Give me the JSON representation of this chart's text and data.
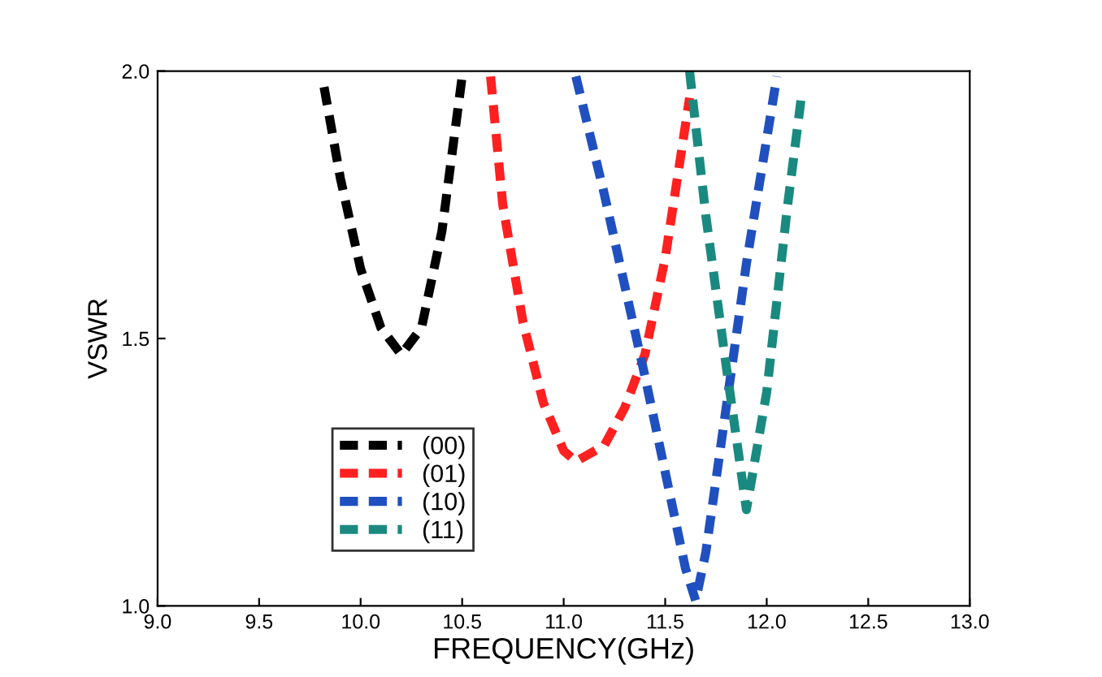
{
  "chart_data": {
    "type": "line",
    "xlabel": "FREQUENCY(GHz)",
    "ylabel": "VSWR",
    "xlim": [
      9.0,
      13.0
    ],
    "ylim": [
      1.0,
      2.0
    ],
    "xticks": [
      {
        "value": 9.0,
        "label": "9.0"
      },
      {
        "value": 9.5,
        "label": "9.5"
      },
      {
        "value": 10.0,
        "label": "10.0"
      },
      {
        "value": 10.5,
        "label": "10.5"
      },
      {
        "value": 11.0,
        "label": "11.0"
      },
      {
        "value": 11.5,
        "label": "11.5"
      },
      {
        "value": 12.0,
        "label": "12.0"
      },
      {
        "value": 12.5,
        "label": "12.5"
      },
      {
        "value": 13.0,
        "label": "13.0"
      }
    ],
    "yticks": [
      {
        "value": 1.0,
        "label": "1.0"
      },
      {
        "value": 1.5,
        "label": "1.5"
      },
      {
        "value": 2.0,
        "label": "2.0"
      }
    ],
    "line_style": "dashed",
    "marker": "none",
    "grid": false,
    "legend": "bottom left",
    "series": [
      {
        "name": "(00)",
        "color": "#000000",
        "x": [
          9.82,
          9.9,
          10.0,
          10.1,
          10.2,
          10.3,
          10.4,
          10.5
        ],
        "values": [
          1.97,
          1.8,
          1.63,
          1.52,
          1.47,
          1.52,
          1.7,
          1.99
        ]
      },
      {
        "name": "(01)",
        "color": "#ff2020",
        "x": [
          10.64,
          10.7,
          10.8,
          10.9,
          11.0,
          11.06,
          11.2,
          11.3,
          11.4,
          11.5,
          11.62
        ],
        "values": [
          1.99,
          1.75,
          1.53,
          1.38,
          1.29,
          1.27,
          1.3,
          1.37,
          1.47,
          1.65,
          1.95
        ]
      },
      {
        "name": "(10)",
        "color": "#2050c0",
        "x": [
          11.06,
          11.2,
          11.3,
          11.4,
          11.5,
          11.6,
          11.65,
          11.7,
          11.8,
          11.9,
          12.05
        ],
        "values": [
          1.99,
          1.77,
          1.6,
          1.43,
          1.25,
          1.07,
          1.01,
          1.1,
          1.37,
          1.64,
          1.99
        ]
      },
      {
        "name": "(11)",
        "color": "#1a8a80",
        "x": [
          11.62,
          11.7,
          11.8,
          11.9,
          12.0,
          12.1,
          12.17
        ],
        "values": [
          2.0,
          1.73,
          1.45,
          1.18,
          1.4,
          1.74,
          1.95
        ]
      }
    ]
  }
}
